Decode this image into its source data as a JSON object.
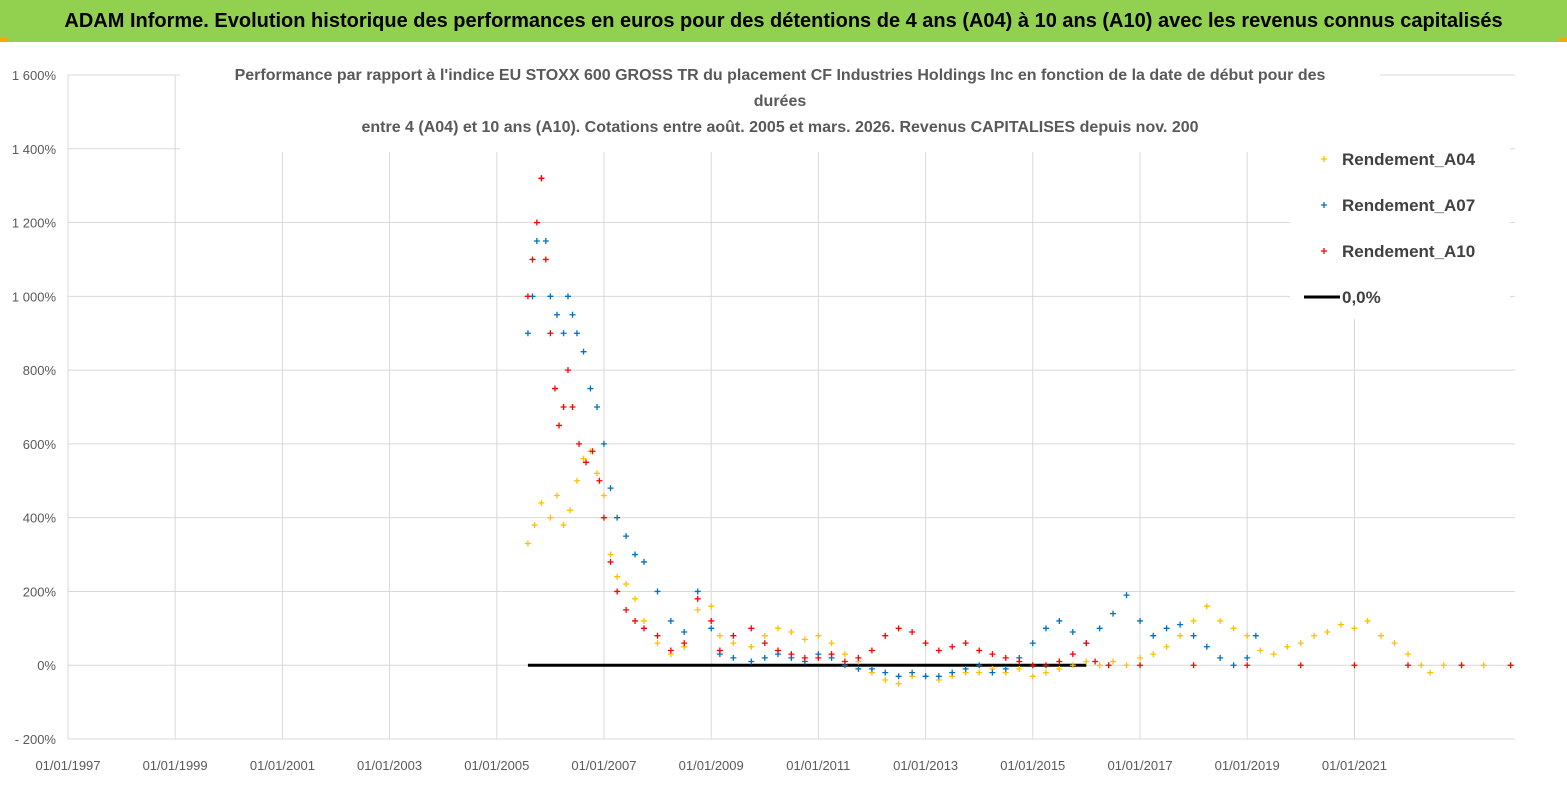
{
  "banner": {
    "title": "ADAM Informe. Evolution historique des performances en euros pour des détentions de 4 ans (A04) à 10 ans (A10) avec les revenus connus capitalisés"
  },
  "colors": {
    "banner_bg": "#92d050",
    "a04": "#ffc000",
    "a07": "#0070c0",
    "a10": "#ff0000",
    "zero": "#000000",
    "grid": "#d9d9d9",
    "text": "#595959"
  },
  "chart_data": {
    "type": "scatter",
    "title_lines": [
      "Performance par rapport à l'indice EU STOXX 600 GROSS TR  du placement CF Industries Holdings Inc en fonction de la date de début pour des",
      "durées",
      "entre 4 (A04) et 10 ans (A10). Cotations entre août. 2005 et mars. 2026. Revenus CAPITALISES depuis nov. 200"
    ],
    "xlabel": "",
    "ylabel": "",
    "x_range": [
      "1997-01-01",
      "2023-12-31"
    ],
    "ylim": [
      -200,
      1600
    ],
    "y_ticks": [
      {
        "v": -200,
        "label": "- 200%"
      },
      {
        "v": 0,
        "label": "0%"
      },
      {
        "v": 200,
        "label": "200%"
      },
      {
        "v": 400,
        "label": "400%"
      },
      {
        "v": 600,
        "label": "600%"
      },
      {
        "v": 800,
        "label": "800%"
      },
      {
        "v": 1000,
        "label": "1 000%"
      },
      {
        "v": 1200,
        "label": "1 200%"
      },
      {
        "v": 1400,
        "label": "1 400%"
      },
      {
        "v": 1600,
        "label": "1 600%"
      }
    ],
    "x_ticks": [
      {
        "v": "1997-01-01",
        "label": "01/01/1997"
      },
      {
        "v": "1999-01-01",
        "label": "01/01/1999"
      },
      {
        "v": "2001-01-01",
        "label": "01/01/2001"
      },
      {
        "v": "2003-01-01",
        "label": "01/01/2003"
      },
      {
        "v": "2005-01-01",
        "label": "01/01/2005"
      },
      {
        "v": "2007-01-01",
        "label": "01/01/2007"
      },
      {
        "v": "2009-01-01",
        "label": "01/01/2009"
      },
      {
        "v": "2011-01-01",
        "label": "01/01/2011"
      },
      {
        "v": "2013-01-01",
        "label": "01/01/2013"
      },
      {
        "v": "2015-01-01",
        "label": "01/01/2015"
      },
      {
        "v": "2017-01-01",
        "label": "01/01/2017"
      },
      {
        "v": "2019-01-01",
        "label": "01/01/2019"
      },
      {
        "v": "2021-01-01",
        "label": "01/01/2021"
      }
    ],
    "grid": true,
    "legend_position": "top-right",
    "series": [
      {
        "name": "Rendement_A04",
        "marker": "+",
        "color": "#ffc000",
        "points": [
          [
            "2005-08-01",
            330
          ],
          [
            "2005-09-15",
            380
          ],
          [
            "2005-11-01",
            440
          ],
          [
            "2006-01-01",
            400
          ],
          [
            "2006-02-15",
            460
          ],
          [
            "2006-04-01",
            380
          ],
          [
            "2006-05-15",
            420
          ],
          [
            "2006-07-01",
            500
          ],
          [
            "2006-08-15",
            560
          ],
          [
            "2006-10-01",
            580
          ],
          [
            "2006-11-15",
            520
          ],
          [
            "2007-01-01",
            460
          ],
          [
            "2007-02-15",
            300
          ],
          [
            "2007-04-01",
            240
          ],
          [
            "2007-06-01",
            220
          ],
          [
            "2007-08-01",
            180
          ],
          [
            "2007-10-01",
            120
          ],
          [
            "2008-01-01",
            60
          ],
          [
            "2008-04-01",
            30
          ],
          [
            "2008-07-01",
            50
          ],
          [
            "2008-10-01",
            150
          ],
          [
            "2009-01-01",
            160
          ],
          [
            "2009-03-01",
            80
          ],
          [
            "2009-06-01",
            60
          ],
          [
            "2009-10-01",
            50
          ],
          [
            "2010-01-01",
            80
          ],
          [
            "2010-04-01",
            100
          ],
          [
            "2010-07-01",
            90
          ],
          [
            "2010-10-01",
            70
          ],
          [
            "2011-01-01",
            80
          ],
          [
            "2011-04-01",
            60
          ],
          [
            "2011-07-01",
            30
          ],
          [
            "2011-10-01",
            10
          ],
          [
            "2012-01-01",
            -20
          ],
          [
            "2012-04-01",
            -40
          ],
          [
            "2012-07-01",
            -50
          ],
          [
            "2012-10-01",
            -30
          ],
          [
            "2013-01-01",
            -30
          ],
          [
            "2013-04-01",
            -40
          ],
          [
            "2013-07-01",
            -30
          ],
          [
            "2013-10-01",
            -20
          ],
          [
            "2014-01-01",
            -20
          ],
          [
            "2014-04-01",
            -10
          ],
          [
            "2014-07-01",
            -20
          ],
          [
            "2014-10-01",
            -10
          ],
          [
            "2015-01-01",
            -30
          ],
          [
            "2015-04-01",
            -20
          ],
          [
            "2015-07-01",
            -10
          ],
          [
            "2015-10-01",
            0
          ],
          [
            "2016-01-01",
            10
          ],
          [
            "2016-04-01",
            0
          ],
          [
            "2016-07-01",
            10
          ],
          [
            "2016-10-01",
            0
          ],
          [
            "2017-01-01",
            20
          ],
          [
            "2017-04-01",
            30
          ],
          [
            "2017-07-01",
            50
          ],
          [
            "2017-10-01",
            80
          ],
          [
            "2018-01-01",
            120
          ],
          [
            "2018-04-01",
            160
          ],
          [
            "2018-07-01",
            120
          ],
          [
            "2018-10-01",
            100
          ],
          [
            "2019-01-01",
            80
          ],
          [
            "2019-04-01",
            40
          ],
          [
            "2019-07-01",
            30
          ],
          [
            "2019-10-01",
            50
          ],
          [
            "2020-01-01",
            60
          ],
          [
            "2020-04-01",
            80
          ],
          [
            "2020-07-01",
            90
          ],
          [
            "2020-10-01",
            110
          ],
          [
            "2021-01-01",
            100
          ],
          [
            "2021-04-01",
            120
          ],
          [
            "2021-07-01",
            80
          ],
          [
            "2021-10-01",
            60
          ],
          [
            "2022-01-01",
            30
          ],
          [
            "2022-04-01",
            0
          ],
          [
            "2022-06-01",
            -20
          ],
          [
            "2022-09-01",
            0
          ],
          [
            "2023-01-01",
            0
          ],
          [
            "2023-06-01",
            0
          ],
          [
            "2023-12-01",
            0
          ]
        ]
      },
      {
        "name": "Rendement_A07",
        "marker": "+",
        "color": "#0070c0",
        "points": [
          [
            "2005-08-01",
            900
          ],
          [
            "2005-09-01",
            1000
          ],
          [
            "2005-10-01",
            1150
          ],
          [
            "2005-11-01",
            1320
          ],
          [
            "2005-12-01",
            1150
          ],
          [
            "2006-01-01",
            1000
          ],
          [
            "2006-02-15",
            950
          ],
          [
            "2006-04-01",
            900
          ],
          [
            "2006-05-01",
            1000
          ],
          [
            "2006-06-01",
            950
          ],
          [
            "2006-07-01",
            900
          ],
          [
            "2006-08-15",
            850
          ],
          [
            "2006-10-01",
            750
          ],
          [
            "2006-11-15",
            700
          ],
          [
            "2007-01-01",
            600
          ],
          [
            "2007-02-15",
            480
          ],
          [
            "2007-04-01",
            400
          ],
          [
            "2007-06-01",
            350
          ],
          [
            "2007-08-01",
            300
          ],
          [
            "2007-10-01",
            280
          ],
          [
            "2008-01-01",
            200
          ],
          [
            "2008-04-01",
            120
          ],
          [
            "2008-07-01",
            90
          ],
          [
            "2008-10-01",
            200
          ],
          [
            "2009-01-01",
            100
          ],
          [
            "2009-03-01",
            30
          ],
          [
            "2009-06-01",
            20
          ],
          [
            "2009-10-01",
            10
          ],
          [
            "2010-01-01",
            20
          ],
          [
            "2010-04-01",
            30
          ],
          [
            "2010-07-01",
            20
          ],
          [
            "2010-10-01",
            10
          ],
          [
            "2011-01-01",
            30
          ],
          [
            "2011-04-01",
            20
          ],
          [
            "2011-07-01",
            0
          ],
          [
            "2011-10-01",
            -10
          ],
          [
            "2012-01-01",
            -10
          ],
          [
            "2012-04-01",
            -20
          ],
          [
            "2012-07-01",
            -30
          ],
          [
            "2012-10-01",
            -20
          ],
          [
            "2013-01-01",
            -30
          ],
          [
            "2013-04-01",
            -30
          ],
          [
            "2013-07-01",
            -20
          ],
          [
            "2013-10-01",
            -10
          ],
          [
            "2014-01-01",
            0
          ],
          [
            "2014-04-01",
            -20
          ],
          [
            "2014-07-01",
            -10
          ],
          [
            "2014-10-01",
            20
          ],
          [
            "2015-01-01",
            60
          ],
          [
            "2015-04-01",
            100
          ],
          [
            "2015-07-01",
            120
          ],
          [
            "2015-10-01",
            90
          ],
          [
            "2016-01-01",
            60
          ],
          [
            "2016-04-01",
            100
          ],
          [
            "2016-07-01",
            140
          ],
          [
            "2016-10-01",
            190
          ],
          [
            "2017-01-01",
            120
          ],
          [
            "2017-04-01",
            80
          ],
          [
            "2017-07-01",
            100
          ],
          [
            "2017-10-01",
            110
          ],
          [
            "2018-01-01",
            80
          ],
          [
            "2018-04-01",
            50
          ],
          [
            "2018-07-01",
            20
          ],
          [
            "2018-10-01",
            0
          ],
          [
            "2019-01-01",
            20
          ],
          [
            "2019-03-01",
            80
          ]
        ]
      },
      {
        "name": "Rendement_A10",
        "marker": "+",
        "color": "#ff0000",
        "points": [
          [
            "2005-08-01",
            1000
          ],
          [
            "2005-09-01",
            1100
          ],
          [
            "2005-10-01",
            1200
          ],
          [
            "2005-11-01",
            1320
          ],
          [
            "2005-12-01",
            1100
          ],
          [
            "2006-01-01",
            900
          ],
          [
            "2006-02-01",
            750
          ],
          [
            "2006-03-01",
            650
          ],
          [
            "2006-04-01",
            700
          ],
          [
            "2006-05-01",
            800
          ],
          [
            "2006-06-01",
            700
          ],
          [
            "2006-07-15",
            600
          ],
          [
            "2006-09-01",
            550
          ],
          [
            "2006-10-15",
            580
          ],
          [
            "2006-12-01",
            500
          ],
          [
            "2007-01-01",
            400
          ],
          [
            "2007-02-15",
            280
          ],
          [
            "2007-04-01",
            200
          ],
          [
            "2007-06-01",
            150
          ],
          [
            "2007-08-01",
            120
          ],
          [
            "2007-10-01",
            100
          ],
          [
            "2008-01-01",
            80
          ],
          [
            "2008-04-01",
            40
          ],
          [
            "2008-07-01",
            60
          ],
          [
            "2008-10-01",
            180
          ],
          [
            "2009-01-01",
            120
          ],
          [
            "2009-03-01",
            40
          ],
          [
            "2009-06-01",
            80
          ],
          [
            "2009-10-01",
            100
          ],
          [
            "2010-01-01",
            60
          ],
          [
            "2010-04-01",
            40
          ],
          [
            "2010-07-01",
            30
          ],
          [
            "2010-10-01",
            20
          ],
          [
            "2011-01-01",
            20
          ],
          [
            "2011-04-01",
            30
          ],
          [
            "2011-07-01",
            10
          ],
          [
            "2011-10-01",
            20
          ],
          [
            "2012-01-01",
            40
          ],
          [
            "2012-04-01",
            80
          ],
          [
            "2012-07-01",
            100
          ],
          [
            "2012-10-01",
            90
          ],
          [
            "2013-01-01",
            60
          ],
          [
            "2013-04-01",
            40
          ],
          [
            "2013-07-01",
            50
          ],
          [
            "2013-10-01",
            60
          ],
          [
            "2014-01-01",
            40
          ],
          [
            "2014-04-01",
            30
          ],
          [
            "2014-07-01",
            20
          ],
          [
            "2014-10-01",
            10
          ],
          [
            "2015-01-01",
            0
          ],
          [
            "2015-04-01",
            0
          ],
          [
            "2015-07-01",
            10
          ],
          [
            "2015-10-01",
            30
          ],
          [
            "2016-01-01",
            60
          ],
          [
            "2016-03-01",
            10
          ],
          [
            "2016-06-01",
            0
          ],
          [
            "2017-01-01",
            0
          ],
          [
            "2018-01-01",
            0
          ],
          [
            "2019-01-01",
            0
          ],
          [
            "2020-01-01",
            0
          ],
          [
            "2021-01-01",
            0
          ],
          [
            "2022-01-01",
            0
          ],
          [
            "2023-01-01",
            0
          ],
          [
            "2023-12-01",
            0
          ]
        ]
      }
    ],
    "reference_line": {
      "name": "0,0%",
      "y": 0,
      "from": "2005-08-01",
      "to": "2016-01-01",
      "color": "#000000"
    }
  }
}
